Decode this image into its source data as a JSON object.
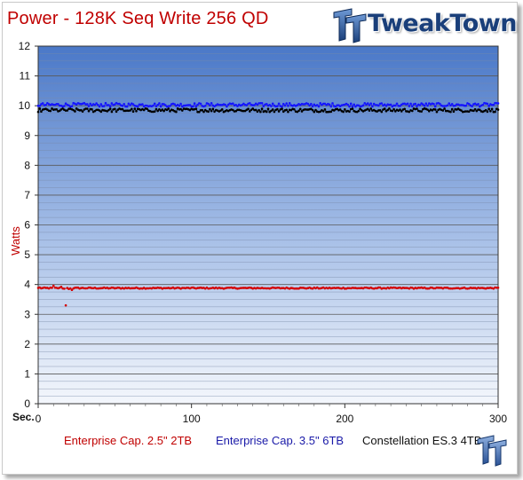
{
  "title": {
    "main": "Power",
    "separator": " - ",
    "subtitle": "128K Seq Write 256 QD"
  },
  "brand": {
    "logo_text": "TweakTown"
  },
  "colors": {
    "title": "#c00000",
    "plot_background_top": "#4a78c8",
    "plot_background_bottom": "#f4f7fc",
    "series_red": "#d40000",
    "series_blue": "#1414ff",
    "series_black": "#000000",
    "brand": "#1a3f7a"
  },
  "chart_data": {
    "type": "scatter",
    "title": "Power - 128K Seq Write 256 QD",
    "xlabel": "Sec.",
    "ylabel": "Watts",
    "xlim": [
      0,
      300
    ],
    "ylim": [
      0,
      12
    ],
    "x_ticks": [
      0,
      100,
      200,
      300
    ],
    "y_ticks": [
      0,
      1,
      2,
      3,
      4,
      5,
      6,
      7,
      8,
      9,
      10,
      11,
      12
    ],
    "grid": true,
    "legend_position": "bottom",
    "series": [
      {
        "name": "Enterprise Cap. 2.5\" 2TB",
        "color": "#d40000",
        "baseline": 3.88,
        "jitter": 0.02,
        "anomalies": [
          {
            "x": 1,
            "y": 3.9
          },
          {
            "x": 10,
            "y": 3.96
          },
          {
            "x": 15,
            "y": 3.92
          },
          {
            "x": 17,
            "y": 3.86
          },
          {
            "x": 18,
            "y": 3.3
          },
          {
            "x": 20,
            "y": 3.85
          },
          {
            "x": 22,
            "y": 3.82
          }
        ]
      },
      {
        "name": "Enterprise Cap. 3.5\" 6TB",
        "color": "#1414ff",
        "baseline": 10.03,
        "jitter": 0.06
      },
      {
        "name": "Constellation ES.3 4TB",
        "color": "#000000",
        "baseline": 9.85,
        "jitter": 0.06
      }
    ]
  }
}
